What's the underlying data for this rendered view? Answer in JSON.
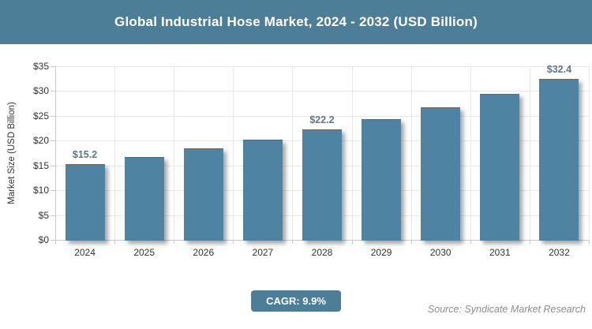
{
  "header": {
    "title": "Global Industrial Hose Market, 2024 - 2032 (USD Billion)"
  },
  "chart_data": {
    "type": "bar",
    "title": "Global Industrial Hose Market, 2024 - 2032 (USD Billion)",
    "categories": [
      "2024",
      "2025",
      "2026",
      "2027",
      "2028",
      "2029",
      "2030",
      "2031",
      "2032"
    ],
    "values": [
      15.2,
      16.7,
      18.4,
      20.2,
      22.2,
      24.4,
      26.8,
      29.4,
      32.4
    ],
    "bar_labels": [
      "$15.2",
      "",
      "",
      "",
      "$22.2",
      "",
      "",
      "",
      "$32.4"
    ],
    "xlabel": "",
    "ylabel": "Market Size (USD Billion)",
    "ylim": [
      0,
      35
    ],
    "ytick_step": 5,
    "ytick_labels": [
      "$0",
      "$5",
      "$10",
      "$15",
      "$20",
      "$25",
      "$30",
      "$35"
    ],
    "grid": true,
    "legend": "none",
    "bar_color": "#4e84a1",
    "value_unit": "USD Billion"
  },
  "footer": {
    "cagr_label": "CAGR: 9.9%",
    "source": "Source: Syndicate Market Research"
  },
  "colors": {
    "header_background": "#4d7e98",
    "bar_fill": "#4e84a1",
    "badge_background": "#4d7e98",
    "data_label_text": "#5d7689",
    "axis_text": "#333333",
    "gridline": "#e8e8e8",
    "source_text": "#8d8d8d"
  }
}
